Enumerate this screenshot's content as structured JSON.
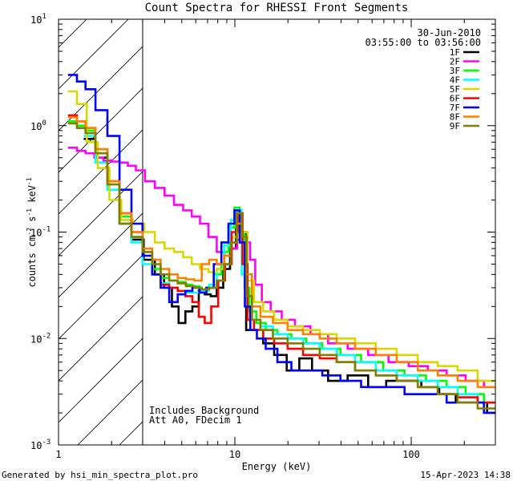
{
  "chart_data": {
    "type": "line",
    "title": "Count Spectra for RHESSI Front Segments",
    "xlabel": "Energy (keV)",
    "ylabel": "counts cm^-2 s^-1 keV^-1",
    "xscale": "log",
    "yscale": "log",
    "xlim": [
      1,
      300
    ],
    "ylim": [
      0.001,
      10
    ],
    "x_tick_labels": [
      {
        "value": 1,
        "label": "1"
      },
      {
        "value": 10,
        "label": "10"
      },
      {
        "value": 100,
        "label": "100"
      }
    ],
    "y_tick_labels": [
      {
        "value": 0.001,
        "base": "10",
        "exp": "-3"
      },
      {
        "value": 0.01,
        "base": "10",
        "exp": "-2"
      },
      {
        "value": 0.1,
        "base": "10",
        "exp": "-1"
      },
      {
        "value": 1,
        "base": "10",
        "exp": "0"
      },
      {
        "value": 10,
        "base": "10",
        "exp": "1"
      }
    ],
    "hatched_region": {
      "x_from": 1,
      "x_to": 3
    },
    "date": "30-Jun-2010",
    "time_range": "03:55:00 to 03:56:00",
    "annotations": [
      "Includes Background",
      "Att A0, FDecim 1"
    ],
    "footer_left": "Generated by hsi_min_spectra_plot.pro",
    "footer_right": "15-Apr-2023 14:38",
    "series": [
      {
        "name": "1F",
        "color": "#000000",
        "x": [
          1.5,
          1.75,
          2.05,
          2.4,
          2.8,
          3.3,
          3.75,
          4.2,
          4.6,
          5.0,
          5.5,
          6.0,
          6.5,
          7.0,
          7.6,
          8.2,
          9.0,
          9.8,
          10.5,
          11.2,
          12.0,
          13.5,
          15.5,
          18.0,
          21.5,
          25.0,
          30.0,
          38.0,
          50.0,
          65.0,
          80.0,
          100.0,
          130.0,
          160.0,
          200.0,
          250.0,
          290.0
        ],
        "y": [
          0.75,
          0.5,
          0.3,
          0.12,
          0.085,
          0.055,
          0.04,
          0.03,
          0.02,
          0.014,
          0.018,
          0.02,
          0.028,
          0.026,
          0.025,
          0.03,
          0.045,
          0.07,
          0.11,
          0.1,
          0.012,
          0.012,
          0.009,
          0.007,
          0.005,
          0.0065,
          0.005,
          0.004,
          0.0045,
          0.0035,
          0.004,
          0.004,
          0.0035,
          0.003,
          0.0025,
          0.0025,
          0.002
        ]
      },
      {
        "name": "2F",
        "color": "#ff00ff",
        "x": [
          1.2,
          1.35,
          1.5,
          1.7,
          1.9,
          2.1,
          2.35,
          2.6,
          2.9,
          3.3,
          3.75,
          4.25,
          4.8,
          5.4,
          6.0,
          6.7,
          7.5,
          8.3,
          9.2,
          10.0,
          10.6,
          11.2,
          11.8,
          12.6,
          13.5,
          15.0,
          17.0,
          20.0,
          24.0,
          30.0,
          38.0,
          50.0,
          65.0,
          85.0,
          110.0,
          140.0,
          180.0,
          230.0,
          290.0
        ],
        "y": [
          0.62,
          0.58,
          0.55,
          0.5,
          0.47,
          0.46,
          0.45,
          0.42,
          0.38,
          0.3,
          0.26,
          0.22,
          0.18,
          0.16,
          0.14,
          0.12,
          0.09,
          0.065,
          0.06,
          0.07,
          0.085,
          0.09,
          0.08,
          0.055,
          0.032,
          0.022,
          0.018,
          0.015,
          0.013,
          0.011,
          0.009,
          0.008,
          0.007,
          0.006,
          0.0055,
          0.005,
          0.0045,
          0.004,
          0.0035
        ]
      },
      {
        "name": "3F",
        "color": "#00ff00",
        "x": [
          1.2,
          1.35,
          1.5,
          1.75,
          2.05,
          2.4,
          2.8,
          3.2,
          3.6,
          4.0,
          4.5,
          5.0,
          5.5,
          6.0,
          6.6,
          7.2,
          8.0,
          8.8,
          9.6,
          10.3,
          11.0,
          11.7,
          12.5,
          14.0,
          16.0,
          19.0,
          23.0,
          28.0,
          35.0,
          45.0,
          60.0,
          80.0,
          105.0,
          140.0,
          180.0,
          230.0,
          290.0
        ],
        "y": [
          1.1,
          1.0,
          0.9,
          0.55,
          0.3,
          0.14,
          0.09,
          0.06,
          0.045,
          0.037,
          0.035,
          0.034,
          0.032,
          0.031,
          0.029,
          0.03,
          0.04,
          0.065,
          0.11,
          0.17,
          0.1,
          0.03,
          0.018,
          0.014,
          0.012,
          0.011,
          0.01,
          0.009,
          0.008,
          0.007,
          0.006,
          0.005,
          0.0045,
          0.004,
          0.0035,
          0.003,
          0.0025
        ]
      },
      {
        "name": "4F",
        "color": "#00ffff",
        "x": [
          1.5,
          1.75,
          2.05,
          2.4,
          2.8,
          3.2,
          3.6,
          4.0,
          4.5,
          5.0,
          5.6,
          6.2,
          6.8,
          7.5,
          8.3,
          9.1,
          9.9,
          10.6,
          11.3,
          12.0,
          13.0,
          15.0,
          18.0,
          22.0,
          27.0,
          34.0,
          42.0,
          55.0,
          72.0,
          95.0,
          125.0,
          160.0,
          210.0,
          270.0
        ],
        "y": [
          0.8,
          0.45,
          0.25,
          0.12,
          0.08,
          0.05,
          0.04,
          0.033,
          0.03,
          0.028,
          0.027,
          0.027,
          0.028,
          0.032,
          0.045,
          0.075,
          0.13,
          0.16,
          0.04,
          0.02,
          0.015,
          0.013,
          0.011,
          0.01,
          0.009,
          0.008,
          0.007,
          0.006,
          0.005,
          0.0045,
          0.004,
          0.0035,
          0.003,
          0.0025
        ]
      },
      {
        "name": "5F",
        "color": "#d8d800",
        "x": [
          1.2,
          1.35,
          1.55,
          1.8,
          2.1,
          2.45,
          2.85,
          3.3,
          3.75,
          4.25,
          4.8,
          5.4,
          6.0,
          6.7,
          7.5,
          8.3,
          9.2,
          10.0,
          10.7,
          11.4,
          12.2,
          13.5,
          15.5,
          18.0,
          22.0,
          27.0,
          34.0,
          42.0,
          55.0,
          72.0,
          95.0,
          125.0,
          160.0,
          210.0,
          270.0
        ],
        "y": [
          2.1,
          1.6,
          0.7,
          0.4,
          0.2,
          0.13,
          0.12,
          0.1,
          0.08,
          0.07,
          0.065,
          0.058,
          0.05,
          0.045,
          0.042,
          0.045,
          0.06,
          0.09,
          0.15,
          0.1,
          0.035,
          0.022,
          0.018,
          0.015,
          0.013,
          0.012,
          0.011,
          0.01,
          0.009,
          0.008,
          0.007,
          0.006,
          0.0055,
          0.005,
          0.004
        ]
      },
      {
        "name": "6F",
        "color": "#ff0000",
        "x": [
          1.2,
          1.35,
          1.5,
          1.75,
          2.05,
          2.4,
          2.8,
          3.2,
          3.6,
          4.0,
          4.5,
          5.0,
          5.5,
          6.0,
          6.5,
          7.0,
          7.7,
          8.4,
          9.2,
          10.0,
          10.7,
          11.4,
          12.2,
          13.5,
          15.5,
          18.0,
          22.0,
          27.0,
          34.0,
          42.0,
          55.0,
          72.0,
          95.0,
          125.0,
          160.0,
          210.0,
          270.0
        ],
        "y": [
          1.25,
          1.1,
          0.95,
          0.6,
          0.3,
          0.15,
          0.1,
          0.065,
          0.04,
          0.032,
          0.03,
          0.028,
          0.025,
          0.022,
          0.016,
          0.014,
          0.02,
          0.035,
          0.05,
          0.1,
          0.15,
          0.05,
          0.015,
          0.012,
          0.01,
          0.009,
          0.008,
          0.007,
          0.0065,
          0.006,
          0.005,
          0.0045,
          0.004,
          0.0035,
          0.003,
          0.0028,
          0.0025
        ]
      },
      {
        "name": "7F",
        "color": "#0000ff",
        "x": [
          1.2,
          1.35,
          1.5,
          1.75,
          2.05,
          2.4,
          2.8,
          3.2,
          3.6,
          4.0,
          4.5,
          5.0,
          5.5,
          6.0,
          6.6,
          7.2,
          8.0,
          8.8,
          9.6,
          10.3,
          11.0,
          11.8,
          12.7,
          14.0,
          16.0,
          19.0,
          23.0,
          28.0,
          35.0,
          45.0,
          60.0,
          80.0,
          105.0,
          140.0,
          180.0,
          230.0,
          290.0
        ],
        "y": [
          3.0,
          2.6,
          2.2,
          1.4,
          0.8,
          0.25,
          0.12,
          0.06,
          0.04,
          0.03,
          0.022,
          0.026,
          0.028,
          0.03,
          0.027,
          0.03,
          0.05,
          0.08,
          0.12,
          0.16,
          0.08,
          0.02,
          0.012,
          0.01,
          0.008,
          0.006,
          0.005,
          0.005,
          0.0045,
          0.004,
          0.0035,
          0.0035,
          0.003,
          0.003,
          0.0025,
          0.0025,
          0.002
        ]
      },
      {
        "name": "8F",
        "color": "#ff8000",
        "x": [
          1.2,
          1.35,
          1.5,
          1.75,
          2.05,
          2.4,
          2.8,
          3.2,
          3.6,
          4.0,
          4.5,
          5.0,
          5.6,
          6.2,
          6.8,
          7.5,
          8.3,
          9.1,
          9.9,
          10.6,
          11.3,
          12.0,
          13.0,
          15.0,
          18.0,
          22.0,
          27.0,
          34.0,
          42.0,
          55.0,
          72.0,
          95.0,
          125.0,
          160.0,
          210.0,
          270.0
        ],
        "y": [
          1.2,
          1.1,
          0.95,
          0.6,
          0.3,
          0.15,
          0.1,
          0.07,
          0.055,
          0.045,
          0.04,
          0.037,
          0.036,
          0.035,
          0.05,
          0.055,
          0.05,
          0.06,
          0.08,
          0.12,
          0.09,
          0.04,
          0.02,
          0.016,
          0.014,
          0.012,
          0.011,
          0.01,
          0.009,
          0.008,
          0.007,
          0.006,
          0.005,
          0.0045,
          0.004,
          0.0035
        ]
      },
      {
        "name": "9F",
        "color": "#808000",
        "x": [
          1.2,
          1.35,
          1.5,
          1.75,
          2.05,
          2.4,
          2.8,
          3.2,
          3.6,
          4.0,
          4.5,
          5.0,
          5.6,
          6.2,
          6.8,
          7.5,
          8.3,
          9.1,
          9.9,
          10.6,
          11.3,
          12.0,
          13.0,
          15.0,
          18.0,
          22.0,
          27.0,
          34.0,
          42.0,
          55.0,
          72.0,
          95.0,
          125.0,
          160.0,
          210.0,
          270.0
        ],
        "y": [
          1.05,
          0.95,
          0.85,
          0.55,
          0.28,
          0.12,
          0.09,
          0.065,
          0.05,
          0.04,
          0.035,
          0.033,
          0.031,
          0.03,
          0.029,
          0.03,
          0.035,
          0.05,
          0.08,
          0.15,
          0.09,
          0.025,
          0.015,
          0.012,
          0.01,
          0.009,
          0.008,
          0.007,
          0.006,
          0.005,
          0.0045,
          0.004,
          0.0035,
          0.003,
          0.0025,
          0.0022
        ]
      }
    ]
  }
}
